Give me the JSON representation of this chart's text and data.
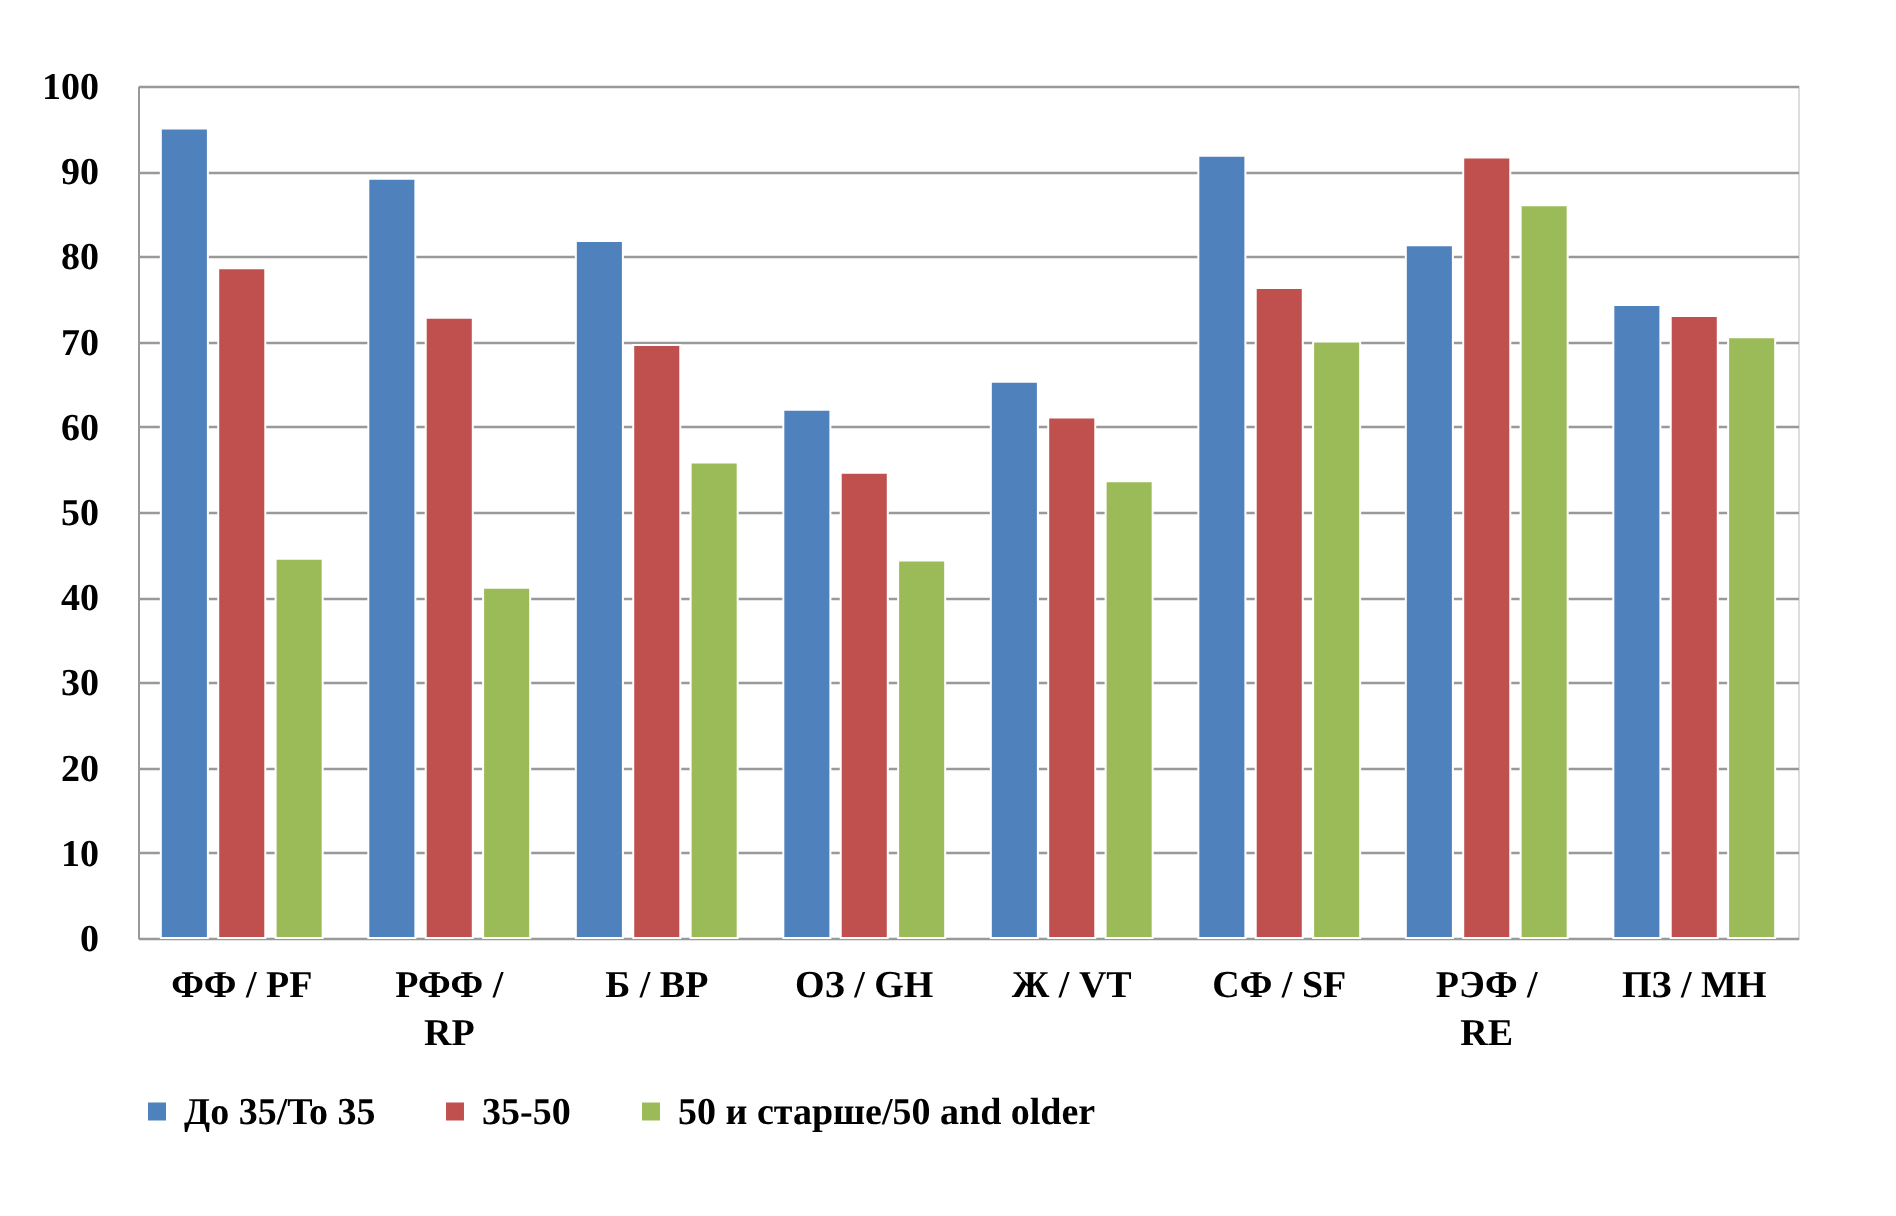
{
  "chart_data": {
    "type": "bar",
    "categories": [
      "ФФ / PF",
      "РФФ / RP",
      "Б / BP",
      "ОЗ / GH",
      "Ж / VT",
      "СФ / SF",
      "РЭФ / RE",
      "ПЗ / MH"
    ],
    "series": [
      {
        "name": "До 35/To 35",
        "color": "#4f81bd",
        "values": [
          95.0,
          89.1,
          81.8,
          62.0,
          65.3,
          91.8,
          81.3,
          74.3
        ]
      },
      {
        "name": "35-50",
        "color": "#c0504d",
        "values": [
          78.6,
          72.8,
          69.6,
          54.6,
          61.1,
          76.3,
          91.6,
          73.0
        ]
      },
      {
        "name": "50 и старше/50 and older",
        "color": "#9bbb59",
        "values": [
          44.5,
          41.1,
          55.8,
          44.3,
          53.6,
          70.0,
          86.0,
          70.5
        ]
      }
    ],
    "ylim": [
      0,
      100
    ],
    "yticks": [
      0,
      10,
      20,
      30,
      40,
      50,
      60,
      70,
      80,
      90,
      100
    ],
    "grid": "y",
    "legend": "bottom"
  }
}
